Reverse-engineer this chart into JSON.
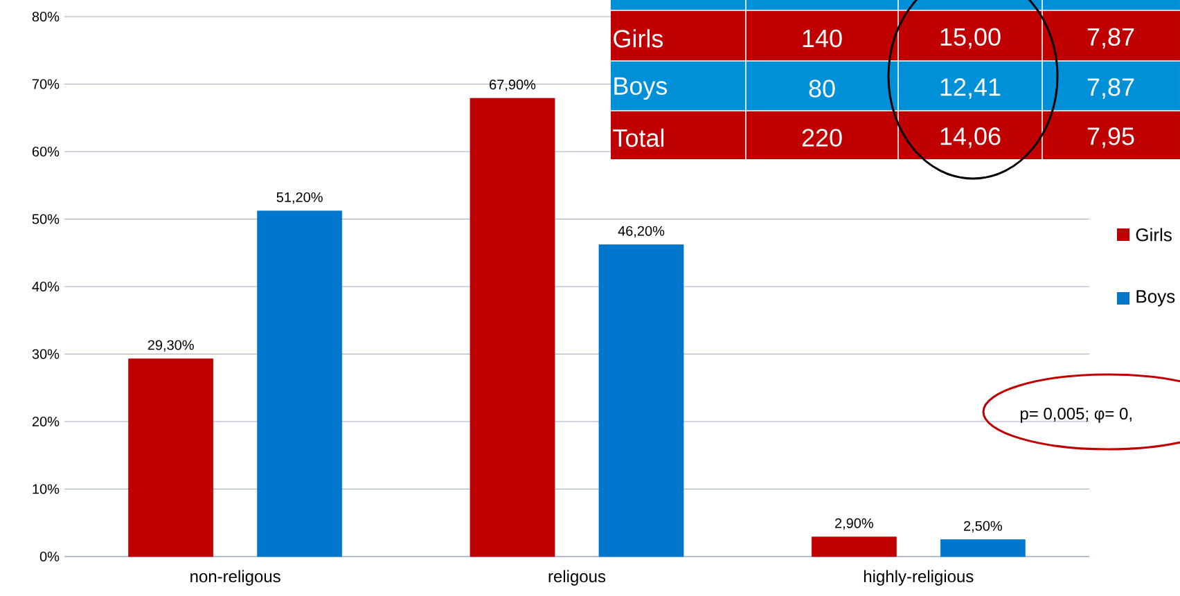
{
  "chart_data": {
    "type": "bar",
    "categories": [
      "non-religous",
      "religous",
      "highly-religious"
    ],
    "series": [
      {
        "name": "Girls",
        "color": "#c00000",
        "values": [
          29.3,
          67.9,
          2.9
        ],
        "value_labels": [
          "29,30%",
          "67,90%",
          "2,90%"
        ]
      },
      {
        "name": "Boys",
        "color": "#0077cc",
        "values": [
          51.2,
          46.2,
          2.5
        ],
        "value_labels": [
          "51,20%",
          "46,20%",
          "2,50%"
        ]
      }
    ],
    "ylim": [
      0,
      80
    ],
    "yticks": [
      {
        "value": 0,
        "label": "0%"
      },
      {
        "value": 10,
        "label": "10%"
      },
      {
        "value": 20,
        "label": "20%"
      },
      {
        "value": 30,
        "label": "30%"
      },
      {
        "value": 40,
        "label": "40%"
      },
      {
        "value": 50,
        "label": "50%"
      },
      {
        "value": 60,
        "label": "60%"
      },
      {
        "value": 70,
        "label": "70%"
      },
      {
        "value": 80,
        "label": "80%"
      }
    ],
    "grid": "y",
    "legend": "right",
    "annotations": [
      "p= 0,005; φ= 0,",
      "Girls",
      "140",
      "15,00",
      "7,87",
      "Boys",
      "80",
      "12,41",
      "7,87",
      "Total",
      "220",
      "14,06",
      "7,95"
    ]
  }
}
